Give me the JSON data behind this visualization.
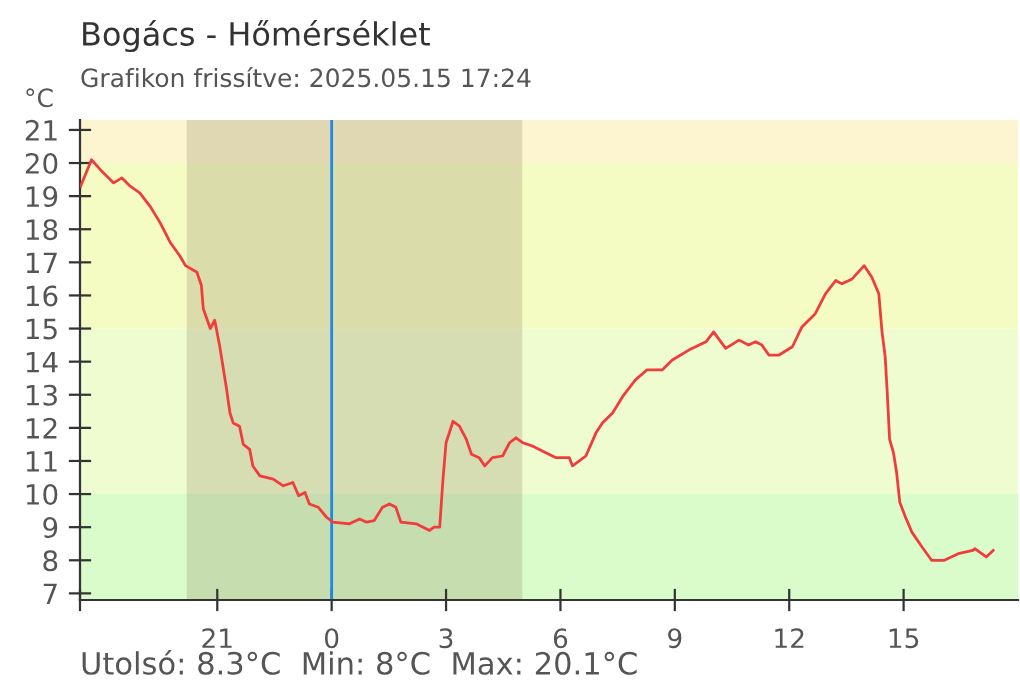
{
  "chart_data": {
    "type": "line",
    "title": "Bogács - Hőmérséklet",
    "subtitle": "Grafikon frissítve: 2025.05.15 17:24",
    "ylabel": "°C",
    "annotations": [
      "Utolsó: 8.3°C  Min: 8°C  Max: 20.1°C"
    ],
    "x": [
      "2025-05-14T17:25",
      "2025-05-14T17:40",
      "2025-05-14T17:42",
      "2025-05-14T17:56",
      "2025-05-14T18:17",
      "2025-05-14T18:30",
      "2025-05-14T18:43",
      "2025-05-14T18:58",
      "2025-05-14T19:14",
      "2025-05-14T19:30",
      "2025-05-14T19:46",
      "2025-05-14T20:01",
      "2025-05-14T20:10",
      "2025-05-14T20:28",
      "2025-05-14T20:35",
      "2025-05-14T20:38",
      "2025-05-14T20:49",
      "2025-05-14T20:56",
      "2025-05-14T21:04",
      "2025-05-14T21:14",
      "2025-05-14T21:20",
      "2025-05-14T21:25",
      "2025-05-14T21:35",
      "2025-05-14T21:41",
      "2025-05-14T21:51",
      "2025-05-14T21:56",
      "2025-05-14T22:07",
      "2025-05-14T22:28",
      "2025-05-14T22:44",
      "2025-05-14T22:59",
      "2025-05-14T23:08",
      "2025-05-14T23:18",
      "2025-05-14T23:25",
      "2025-05-14T23:39",
      "2025-05-14T23:52",
      "2025-05-15T00:02",
      "2025-05-15T00:28",
      "2025-05-15T00:44",
      "2025-05-15T00:55",
      "2025-05-15T01:07",
      "2025-05-15T01:20",
      "2025-05-15T01:31",
      "2025-05-15T01:41",
      "2025-05-15T01:49",
      "2025-05-15T02:13",
      "2025-05-15T02:34",
      "2025-05-15T02:41",
      "2025-05-15T02:50",
      "2025-05-15T02:55",
      "2025-05-15T03:00",
      "2025-05-15T03:11",
      "2025-05-15T03:21",
      "2025-05-15T03:32",
      "2025-05-15T03:40",
      "2025-05-15T03:52",
      "2025-05-15T04:01",
      "2025-05-15T04:13",
      "2025-05-15T04:29",
      "2025-05-15T04:40",
      "2025-05-15T04:50",
      "2025-05-15T05:01",
      "2025-05-15T05:16",
      "2025-05-15T05:37",
      "2025-05-15T05:53",
      "2025-05-15T06:14",
      "2025-05-15T06:19",
      "2025-05-15T06:40",
      "2025-05-15T06:56",
      "2025-05-15T07:06",
      "2025-05-15T07:22",
      "2025-05-15T07:38",
      "2025-05-15T07:58",
      "2025-05-15T08:16",
      "2025-05-15T08:40",
      "2025-05-15T08:56",
      "2025-05-15T09:22",
      "2025-05-15T09:49",
      "2025-05-15T10:01",
      "2025-05-15T10:20",
      "2025-05-15T10:41",
      "2025-05-15T10:56",
      "2025-05-15T11:07",
      "2025-05-15T11:17",
      "2025-05-15T11:28",
      "2025-05-15T11:44",
      "2025-05-15T12:05",
      "2025-05-15T12:20",
      "2025-05-15T12:41",
      "2025-05-15T12:57",
      "2025-05-15T13:13",
      "2025-05-15T13:23",
      "2025-05-15T13:39",
      "2025-05-15T13:58",
      "2025-05-15T14:10",
      "2025-05-15T14:21",
      "2025-05-15T14:26",
      "2025-05-15T14:31",
      "2025-05-15T14:34",
      "2025-05-15T14:38",
      "2025-05-15T14:44",
      "2025-05-15T14:49",
      "2025-05-15T14:54",
      "2025-05-15T15:02",
      "2025-05-15T15:13",
      "2025-05-15T15:29",
      "2025-05-15T15:44",
      "2025-05-15T16:04",
      "2025-05-15T16:26",
      "2025-05-15T16:49",
      "2025-05-15T16:52",
      "2025-05-15T17:10",
      "2025-05-15T17:21"
    ],
    "series": [
      {
        "color": "#f03c3c",
        "values": [
          19.3,
          20.0,
          20.1,
          19.8,
          19.4,
          19.55,
          19.3,
          19.1,
          18.7,
          18.2,
          17.6,
          17.2,
          16.9,
          16.7,
          16.3,
          15.6,
          15.0,
          15.25,
          14.45,
          13.25,
          12.45,
          12.15,
          12.05,
          11.5,
          11.35,
          10.85,
          10.55,
          10.45,
          10.25,
          10.35,
          9.95,
          10.05,
          9.7,
          9.6,
          9.3,
          9.15,
          9.1,
          9.25,
          9.15,
          9.2,
          9.6,
          9.7,
          9.6,
          9.15,
          9.1,
          8.9,
          9.0,
          9.0,
          10.4,
          11.55,
          12.2,
          12.05,
          11.65,
          11.2,
          11.1,
          10.85,
          11.1,
          11.15,
          11.55,
          11.7,
          11.55,
          11.45,
          11.25,
          11.1,
          11.1,
          10.85,
          11.15,
          11.85,
          12.15,
          12.45,
          12.95,
          13.45,
          13.75,
          13.75,
          14.05,
          14.35,
          14.6,
          14.9,
          14.4,
          14.65,
          14.5,
          14.6,
          14.5,
          14.2,
          14.2,
          14.45,
          15.05,
          15.45,
          16.05,
          16.45,
          16.35,
          16.5,
          16.9,
          16.55,
          16.05,
          14.9,
          14.15,
          13.15,
          11.65,
          11.25,
          10.65,
          9.75,
          9.35,
          8.85,
          8.4,
          8.0,
          8.0,
          8.2,
          8.3,
          8.35,
          8.1,
          8.3
        ]
      }
    ],
    "xlim": [
      "2025-05-14T17:24",
      "2025-05-15T18:00"
    ],
    "xticks": [
      {
        "value": "2025-05-14T17:24",
        "label": null
      },
      {
        "value": "2025-05-14T21:00",
        "label": "21"
      },
      {
        "value": "2025-05-15T00:00",
        "label": "0"
      },
      {
        "value": "2025-05-15T03:00",
        "label": "3"
      },
      {
        "value": "2025-05-15T06:00",
        "label": "6"
      },
      {
        "value": "2025-05-15T09:00",
        "label": "9"
      },
      {
        "value": "2025-05-15T12:00",
        "label": "12"
      },
      {
        "value": "2025-05-15T15:00",
        "label": "15"
      }
    ],
    "ylim": [
      6.8,
      21.3
    ],
    "yticks": [
      7,
      8,
      9,
      10,
      11,
      12,
      13,
      14,
      15,
      16,
      17,
      18,
      19,
      20,
      21
    ],
    "bands": [
      {
        "axis": "y",
        "from": 20,
        "to": 21.3,
        "color": "#fdf5cf"
      },
      {
        "axis": "y",
        "from": 15,
        "to": 20,
        "color": "#f5fcc3"
      },
      {
        "axis": "y",
        "from": 10,
        "to": 15,
        "color": "#effccf"
      },
      {
        "axis": "y",
        "from": 6.8,
        "to": 10,
        "color": "#dafccb"
      },
      {
        "axis": "x",
        "from": "2025-05-14T20:12",
        "to": "2025-05-15T05:00",
        "color": "#8c8060"
      }
    ],
    "ref_lines": [
      {
        "axis": "x",
        "value": "2025-05-15T00:00",
        "color": "#1e88e5"
      }
    ],
    "grid": false,
    "legend": false,
    "marker": "none",
    "line_style": "solid"
  }
}
